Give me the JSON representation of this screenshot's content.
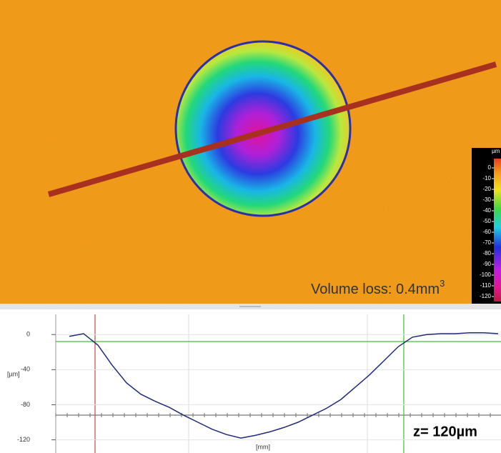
{
  "image": {
    "annotation": "Volume loss: 0.4mm",
    "annotation_superscript": "3",
    "colorbar": {
      "unit": "µm",
      "ticks": [
        0,
        -10,
        -20,
        -30,
        -40,
        -50,
        -60,
        -70,
        -80,
        -90,
        -100,
        -110,
        -120
      ]
    }
  },
  "chart_data": {
    "type": "line",
    "y_label": "[µm]",
    "x_label": "[mm]",
    "annotation": "z= 120µm",
    "values": [
      -2,
      1,
      -12,
      -35,
      -55,
      -68,
      -76,
      -83,
      -92,
      -100,
      -108,
      -114,
      -118,
      -115,
      -111,
      -106,
      -100,
      -92,
      -84,
      -74,
      -60,
      -46,
      -30,
      -14,
      -3,
      0,
      1,
      1,
      2,
      2,
      1
    ],
    "color": "#1f2a7a",
    "ylim": [
      -135,
      23
    ],
    "yticks": [
      0,
      -40,
      -80,
      -120
    ],
    "grid": true
  }
}
